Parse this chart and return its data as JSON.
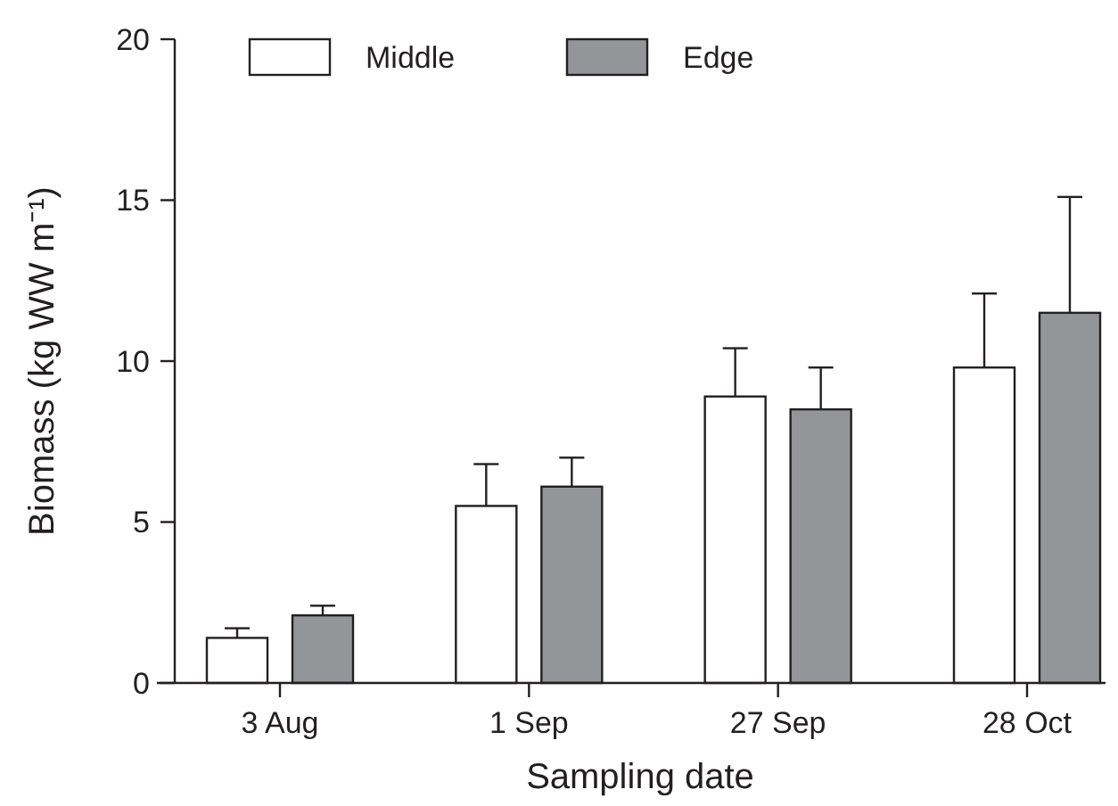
{
  "chart_data": {
    "type": "bar",
    "xlabel": "Sampling date",
    "ylabel": "Biomass (kg WW m⁻¹)",
    "categories": [
      "3 Aug",
      "1 Sep",
      "27 Sep",
      "28 Oct"
    ],
    "series": [
      {
        "name": "Middle",
        "color": "#ffffff",
        "values": [
          1.4,
          5.5,
          8.9,
          9.8
        ],
        "errors": [
          [
            1.4,
            1.7
          ],
          [
            5.5,
            6.8
          ],
          [
            8.9,
            10.4
          ],
          [
            9.8,
            12.1
          ]
        ]
      },
      {
        "name": "Edge",
        "color": "#939598",
        "values": [
          2.1,
          6.1,
          8.5,
          11.5
        ],
        "errors": [
          [
            2.1,
            2.4
          ],
          [
            6.1,
            7.0
          ],
          [
            8.5,
            9.8
          ],
          [
            11.5,
            15.1
          ]
        ]
      }
    ],
    "ylim": [
      0,
      20
    ],
    "yticks": [
      0,
      5,
      10,
      15,
      20
    ],
    "grid": false,
    "legend": "top"
  }
}
